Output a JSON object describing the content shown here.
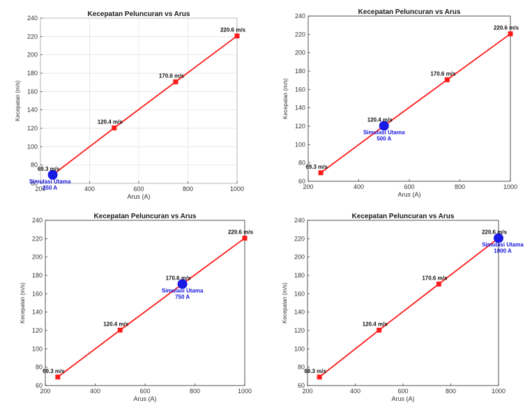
{
  "chart_data": [
    {
      "type": "line",
      "title": "Kecepatan Peluncuran vs Arus",
      "xlabel": "Arus (A)",
      "ylabel": "Kecepatan (m/s)",
      "xlim": [
        200,
        1000
      ],
      "ylim": [
        60,
        240
      ],
      "xticks": [
        "200",
        "400",
        "600",
        "800",
        "1000"
      ],
      "yticks": [
        "60",
        "80",
        "100",
        "120",
        "140",
        "160",
        "180",
        "200",
        "220",
        "240"
      ],
      "grid": true,
      "series": [
        {
          "x": [
            250,
            500,
            750,
            1000
          ],
          "y": [
            69.3,
            120.4,
            170.6,
            220.6
          ],
          "color": "#ff1a1a",
          "labels": [
            "69.3 m/s",
            "120.4 m/s",
            "170.6 m/s",
            "220.6 m/s"
          ]
        }
      ],
      "highlight": {
        "x": 250,
        "y": 69.3,
        "label_line1": "Simulasi Utama",
        "label_line2": "250 A",
        "color": "#1a1ae6"
      }
    },
    {
      "type": "line",
      "title": "Kecepatan Peluncuran vs Arus",
      "xlabel": "Arus (A)",
      "ylabel": "Kecepatan (m/s)",
      "xlim": [
        200,
        1000
      ],
      "ylim": [
        60,
        240
      ],
      "xticks": [
        "200",
        "400",
        "600",
        "800",
        "1000"
      ],
      "yticks": [
        "60",
        "80",
        "100",
        "120",
        "140",
        "160",
        "180",
        "200",
        "220",
        "240"
      ],
      "grid": false,
      "series": [
        {
          "x": [
            250,
            500,
            750,
            1000
          ],
          "y": [
            69.3,
            120.4,
            170.6,
            220.6
          ],
          "color": "#ff1a1a",
          "labels": [
            "69.3 m/s",
            "120.4 m/s",
            "170.6 m/s",
            "220.6 m/s"
          ]
        }
      ],
      "highlight": {
        "x": 500,
        "y": 120.4,
        "label_line1": "Simulasi Utama",
        "label_line2": "500 A",
        "color": "#1a1ae6"
      }
    },
    {
      "type": "line",
      "title": "Kecepatan Peluncuran vs Arus",
      "xlabel": "Arus (A)",
      "ylabel": "Kecepatan (m/s)",
      "xlim": [
        200,
        1000
      ],
      "ylim": [
        60,
        240
      ],
      "xticks": [
        "200",
        "400",
        "600",
        "800",
        "1000"
      ],
      "yticks": [
        "60",
        "80",
        "100",
        "120",
        "140",
        "160",
        "180",
        "200",
        "220",
        "240"
      ],
      "grid": false,
      "series": [
        {
          "x": [
            250,
            500,
            750,
            1000
          ],
          "y": [
            69.3,
            120.4,
            170.6,
            220.6
          ],
          "color": "#ff1a1a",
          "labels": [
            "69.3 m/s",
            "120.4 m/s",
            "170.6 m/s",
            "220.6 m/s"
          ]
        }
      ],
      "highlight": {
        "x": 750,
        "y": 170.6,
        "label_line1": "Simulasi Utama",
        "label_line2": "750 A",
        "color": "#1a1ae6"
      }
    },
    {
      "type": "line",
      "title": "Kecepatan Peluncuran vs Arus",
      "xlabel": "Arus (A)",
      "ylabel": "Kecepatan (m/s)",
      "xlim": [
        200,
        1000
      ],
      "ylim": [
        60,
        240
      ],
      "xticks": [
        "200",
        "400",
        "600",
        "800",
        "1000"
      ],
      "yticks": [
        "60",
        "80",
        "100",
        "120",
        "140",
        "160",
        "180",
        "200",
        "220",
        "240"
      ],
      "grid": false,
      "series": [
        {
          "x": [
            250,
            500,
            750,
            1000
          ],
          "y": [
            69.3,
            120.4,
            170.6,
            220.6
          ],
          "color": "#ff1a1a",
          "labels": [
            "69.3 m/s",
            "120.4 m/s",
            "170.6 m/s",
            "220.6 m/s"
          ]
        }
      ],
      "highlight": {
        "x": 1000,
        "y": 220.6,
        "label_line1": "Simulasi Utama",
        "label_line2": "1000 A",
        "color": "#1a1ae6"
      }
    }
  ]
}
